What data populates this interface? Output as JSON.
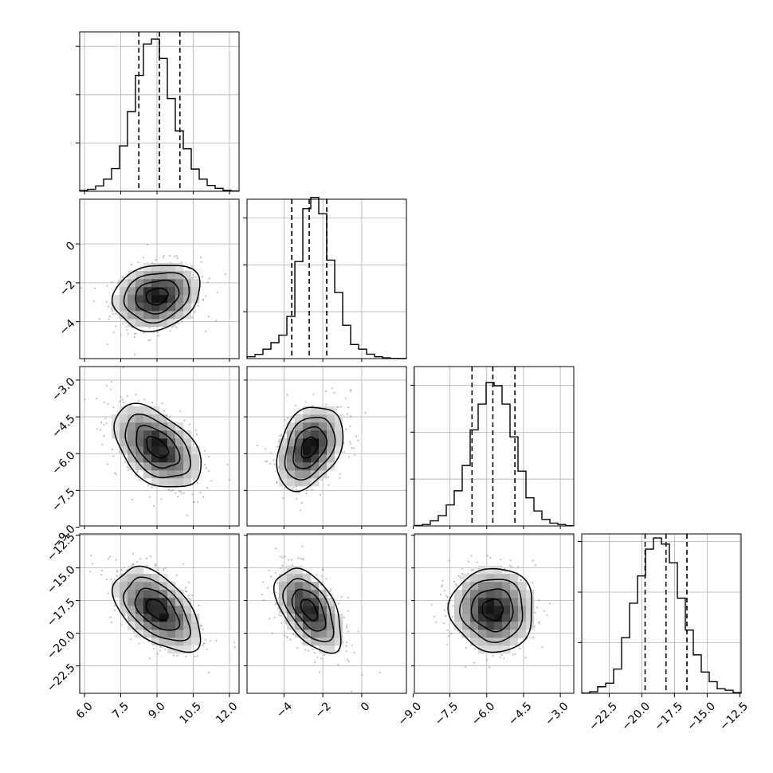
{
  "chart_data": {
    "type": "corner",
    "n_params": 4,
    "colors": {
      "histogram": "#000000",
      "contour": "#000000",
      "scatter": "#8a8a8a",
      "grid": "#b0b0b0",
      "quantile_line": "#000000"
    },
    "grid": true,
    "bins": 20,
    "parameters": [
      {
        "range": [
          5.8,
          12.4
        ],
        "ticks": [
          6.0,
          7.5,
          9.0,
          10.5,
          12.0
        ],
        "tick_labels": [
          "6.0",
          "7.5",
          "9.0",
          "10.5",
          "12.0"
        ],
        "quantiles": [
          8.25,
          9.1,
          9.95
        ],
        "hist_ylim": [
          0,
          3300
        ],
        "hist_counts": [
          15,
          40,
          110,
          250,
          470,
          940,
          1650,
          2400,
          3050,
          3150,
          2750,
          1920,
          1250,
          880,
          460,
          250,
          120,
          60,
          20,
          5
        ]
      },
      {
        "range": [
          -5.9,
          2.3
        ],
        "ticks": [
          -4,
          -2,
          0
        ],
        "tick_labels": [
          "−4",
          "−2",
          "0"
        ],
        "quantiles": [
          -3.6,
          -2.7,
          -1.8
        ],
        "hist_ylim": [
          0,
          3400
        ],
        "hist_counts": [
          40,
          90,
          200,
          340,
          500,
          900,
          2070,
          3200,
          3440,
          3090,
          2100,
          1410,
          710,
          300,
          200,
          95,
          40,
          15,
          5,
          2
        ]
      },
      {
        "range": [
          -8.95,
          -2.45
        ],
        "ticks": [
          -9.0,
          -7.5,
          -6.0,
          -4.5,
          -3.0
        ],
        "tick_labels": [
          "−9.0",
          "−7.5",
          "−6.0",
          "−4.5",
          "−3.0"
        ],
        "quantiles": [
          -6.6,
          -5.75,
          -4.85
        ],
        "hist_ylim": [
          0,
          3400
        ],
        "hist_counts": [
          10,
          30,
          110,
          220,
          450,
          750,
          1290,
          2050,
          2600,
          3060,
          2990,
          2600,
          1900,
          1170,
          600,
          320,
          140,
          60,
          30,
          5
        ]
      },
      {
        "range": [
          -24.6,
          -12.4
        ],
        "ticks": [
          -22.5,
          -20.0,
          -17.5,
          -15.0,
          -12.5
        ],
        "tick_labels": [
          "−22.5",
          "−20.0",
          "−17.5",
          "−15.0",
          "−12.5"
        ],
        "quantiles": [
          -19.75,
          -18.15,
          -16.55
        ],
        "hist_ylim": [
          0,
          3150
        ],
        "hist_counts": [
          5,
          30,
          130,
          200,
          480,
          1100,
          1780,
          2320,
          2850,
          3070,
          2950,
          2580,
          1880,
          1250,
          760,
          420,
          230,
          90,
          60,
          15
        ]
      }
    ],
    "pairs": [
      {
        "row": 1,
        "col": 0,
        "center": [
          9.0,
          -2.7
        ],
        "sigma": [
          0.9,
          0.85
        ],
        "rho": 0.18
      },
      {
        "row": 2,
        "col": 0,
        "center": [
          9.0,
          -5.75
        ],
        "sigma": [
          0.9,
          0.85
        ],
        "rho": -0.45
      },
      {
        "row": 2,
        "col": 1,
        "center": [
          -2.7,
          -5.75
        ],
        "sigma": [
          0.85,
          0.85
        ],
        "rho": 0.33
      },
      {
        "row": 3,
        "col": 0,
        "center": [
          9.0,
          -18.2
        ],
        "sigma": [
          0.9,
          1.6
        ],
        "rho": -0.52
      },
      {
        "row": 3,
        "col": 1,
        "center": [
          -2.7,
          -18.2
        ],
        "sigma": [
          0.85,
          1.6
        ],
        "rho": -0.52
      },
      {
        "row": 3,
        "col": 2,
        "center": [
          -5.75,
          -18.2
        ],
        "sigma": [
          0.85,
          1.6
        ],
        "rho": -0.02
      }
    ],
    "contour_levels_sigma": [
      0.5,
      1.0,
      1.5,
      2.0
    ]
  }
}
